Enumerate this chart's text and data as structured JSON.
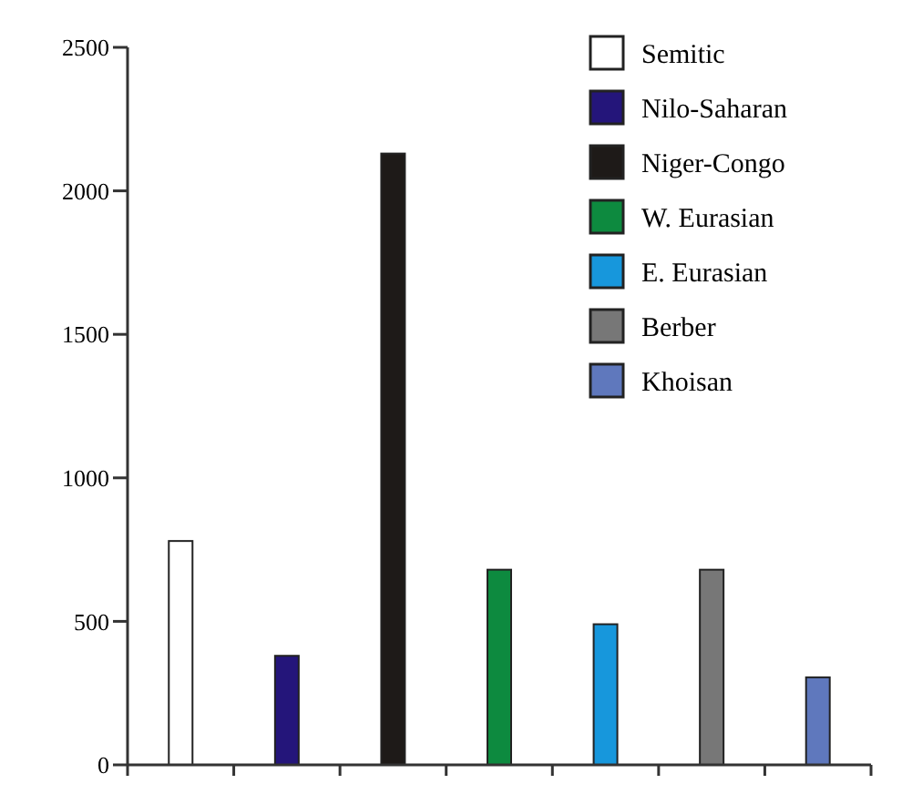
{
  "chart_data": {
    "type": "bar",
    "categories": [
      null,
      null,
      null,
      null,
      null,
      null,
      null
    ],
    "series": [
      {
        "name": "Semitic",
        "color": "#ffffff",
        "values": [
          780,
          null,
          null,
          null,
          null,
          null,
          null
        ]
      },
      {
        "name": "Nilo-Saharan",
        "color": "#24157a",
        "values": [
          null,
          380,
          null,
          null,
          null,
          null,
          null
        ]
      },
      {
        "name": "Niger-Congo",
        "color": "#1e1a18",
        "values": [
          null,
          null,
          2130,
          null,
          null,
          null,
          null
        ]
      },
      {
        "name": "W. Eurasian",
        "color": "#0d8a3f",
        "values": [
          null,
          null,
          null,
          680,
          null,
          null,
          null
        ]
      },
      {
        "name": "E. Eurasian",
        "color": "#1797dc",
        "values": [
          null,
          null,
          null,
          null,
          490,
          null,
          null
        ]
      },
      {
        "name": "Berber",
        "color": "#777777",
        "values": [
          null,
          null,
          null,
          null,
          null,
          680,
          null
        ]
      },
      {
        "name": "Khoisan",
        "color": "#5f78bd",
        "values": [
          null,
          null,
          null,
          null,
          null,
          null,
          305
        ]
      }
    ],
    "ylim": [
      0,
      2500
    ],
    "yticks": [
      0,
      500,
      1000,
      1500,
      2000,
      2500
    ],
    "legend": "top right",
    "grid": false
  }
}
